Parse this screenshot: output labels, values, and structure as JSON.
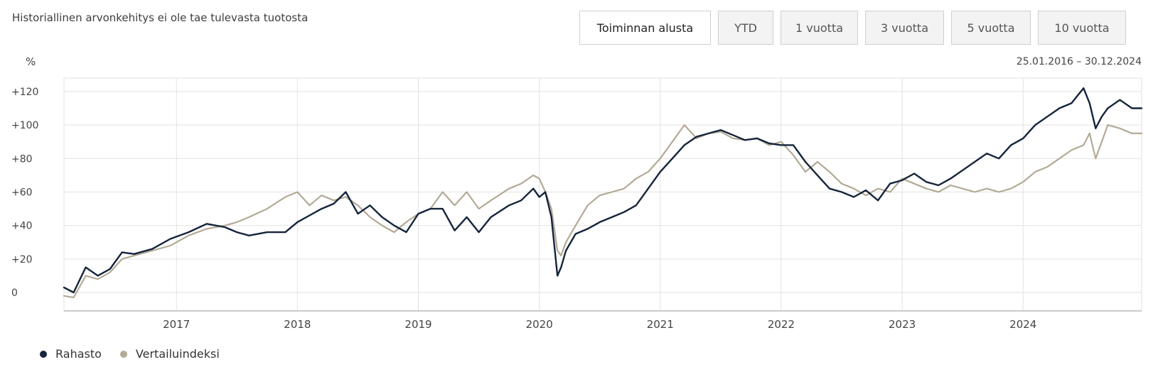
{
  "header": {
    "disclaimer": "Historiallinen arvonkehitys ei ole tae tulevasta tuotosta",
    "range_buttons": [
      "Toiminnan alusta",
      "YTD",
      "1 vuotta",
      "3 vuotta",
      "5 vuotta",
      "10 vuotta"
    ],
    "active_range": "Toiminnan alusta",
    "date_range": "25.01.2016 – 30.12.2024"
  },
  "colors": {
    "fund": "#14243b",
    "benchmark": "#b3aa96",
    "grid": "#e2e2e2"
  },
  "chart_data": {
    "type": "line",
    "title": "",
    "ylabel": "%",
    "xlabel": "",
    "xlim": [
      2016.07,
      2024.98
    ],
    "ylim": [
      -11,
      128
    ],
    "yticks": [
      0,
      20,
      40,
      60,
      80,
      100,
      120
    ],
    "ytick_labels": [
      "0",
      "+20",
      "+40",
      "+60",
      "+80",
      "+100",
      "+120"
    ],
    "xticks": [
      2017,
      2018,
      2019,
      2020,
      2021,
      2022,
      2023,
      2024
    ],
    "xtick_labels": [
      "2017",
      "2018",
      "2019",
      "2020",
      "2021",
      "2022",
      "2023",
      "2024"
    ],
    "grid": true,
    "legend_position": "bottom-left",
    "series": [
      {
        "name": "Rahasto",
        "color": "#14243b",
        "x": [
          2016.07,
          2016.15,
          2016.25,
          2016.35,
          2016.45,
          2016.55,
          2016.65,
          2016.8,
          2016.95,
          2017.1,
          2017.25,
          2017.4,
          2017.5,
          2017.6,
          2017.75,
          2017.9,
          2018.0,
          2018.1,
          2018.2,
          2018.3,
          2018.4,
          2018.5,
          2018.6,
          2018.7,
          2018.8,
          2018.9,
          2019.0,
          2019.1,
          2019.2,
          2019.3,
          2019.4,
          2019.5,
          2019.6,
          2019.75,
          2019.85,
          2019.95,
          2020.0,
          2020.05,
          2020.1,
          2020.15,
          2020.18,
          2020.22,
          2020.3,
          2020.4,
          2020.5,
          2020.6,
          2020.7,
          2020.8,
          2020.9,
          2021.0,
          2021.1,
          2021.2,
          2021.3,
          2021.4,
          2021.5,
          2021.6,
          2021.7,
          2021.8,
          2021.9,
          2022.0,
          2022.1,
          2022.2,
          2022.3,
          2022.4,
          2022.5,
          2022.6,
          2022.7,
          2022.8,
          2022.9,
          2023.0,
          2023.1,
          2023.2,
          2023.3,
          2023.4,
          2023.5,
          2023.6,
          2023.7,
          2023.8,
          2023.9,
          2024.0,
          2024.1,
          2024.2,
          2024.3,
          2024.4,
          2024.5,
          2024.55,
          2024.6,
          2024.65,
          2024.7,
          2024.8,
          2024.9,
          2024.98
        ],
        "y": [
          3,
          0,
          15,
          10,
          14,
          24,
          23,
          26,
          32,
          36,
          41,
          39,
          36,
          34,
          36,
          36,
          42,
          46,
          50,
          53,
          60,
          47,
          52,
          45,
          40,
          36,
          47,
          50,
          50,
          37,
          45,
          36,
          45,
          52,
          55,
          62,
          57,
          60,
          45,
          10,
          15,
          25,
          35,
          38,
          42,
          45,
          48,
          52,
          62,
          72,
          80,
          88,
          93,
          95,
          97,
          94,
          91,
          92,
          89,
          88,
          88,
          78,
          70,
          62,
          60,
          57,
          61,
          55,
          65,
          67,
          71,
          66,
          64,
          68,
          73,
          78,
          83,
          80,
          88,
          92,
          100,
          105,
          110,
          113,
          122,
          113,
          98,
          105,
          110,
          115,
          110,
          110
        ]
      },
      {
        "name": "Vertailuindeksi",
        "color": "#b3aa96",
        "x": [
          2016.07,
          2016.15,
          2016.25,
          2016.35,
          2016.45,
          2016.55,
          2016.65,
          2016.8,
          2016.95,
          2017.1,
          2017.25,
          2017.4,
          2017.5,
          2017.6,
          2017.75,
          2017.9,
          2018.0,
          2018.1,
          2018.2,
          2018.3,
          2018.4,
          2018.5,
          2018.6,
          2018.7,
          2018.8,
          2018.9,
          2019.0,
          2019.1,
          2019.2,
          2019.3,
          2019.4,
          2019.5,
          2019.6,
          2019.75,
          2019.85,
          2019.95,
          2020.0,
          2020.05,
          2020.1,
          2020.15,
          2020.18,
          2020.22,
          2020.3,
          2020.4,
          2020.5,
          2020.6,
          2020.7,
          2020.8,
          2020.9,
          2021.0,
          2021.1,
          2021.2,
          2021.3,
          2021.4,
          2021.5,
          2021.6,
          2021.7,
          2021.8,
          2021.9,
          2022.0,
          2022.1,
          2022.2,
          2022.3,
          2022.4,
          2022.5,
          2022.6,
          2022.7,
          2022.8,
          2022.9,
          2023.0,
          2023.1,
          2023.2,
          2023.3,
          2023.4,
          2023.5,
          2023.6,
          2023.7,
          2023.8,
          2023.9,
          2024.0,
          2024.1,
          2024.2,
          2024.3,
          2024.4,
          2024.5,
          2024.55,
          2024.6,
          2024.65,
          2024.7,
          2024.8,
          2024.9,
          2024.98
        ],
        "y": [
          -2,
          -3,
          10,
          8,
          12,
          20,
          22,
          25,
          28,
          34,
          38,
          40,
          42,
          45,
          50,
          57,
          60,
          52,
          58,
          55,
          57,
          52,
          45,
          40,
          36,
          42,
          47,
          50,
          60,
          52,
          60,
          50,
          55,
          62,
          65,
          70,
          68,
          60,
          50,
          25,
          22,
          30,
          40,
          52,
          58,
          60,
          62,
          68,
          72,
          80,
          90,
          100,
          92,
          95,
          96,
          92,
          91,
          92,
          88,
          90,
          82,
          72,
          78,
          72,
          65,
          62,
          58,
          62,
          60,
          68,
          65,
          62,
          60,
          64,
          62,
          60,
          62,
          60,
          62,
          66,
          72,
          75,
          80,
          85,
          88,
          95,
          80,
          90,
          100,
          98,
          95,
          95
        ]
      }
    ]
  }
}
